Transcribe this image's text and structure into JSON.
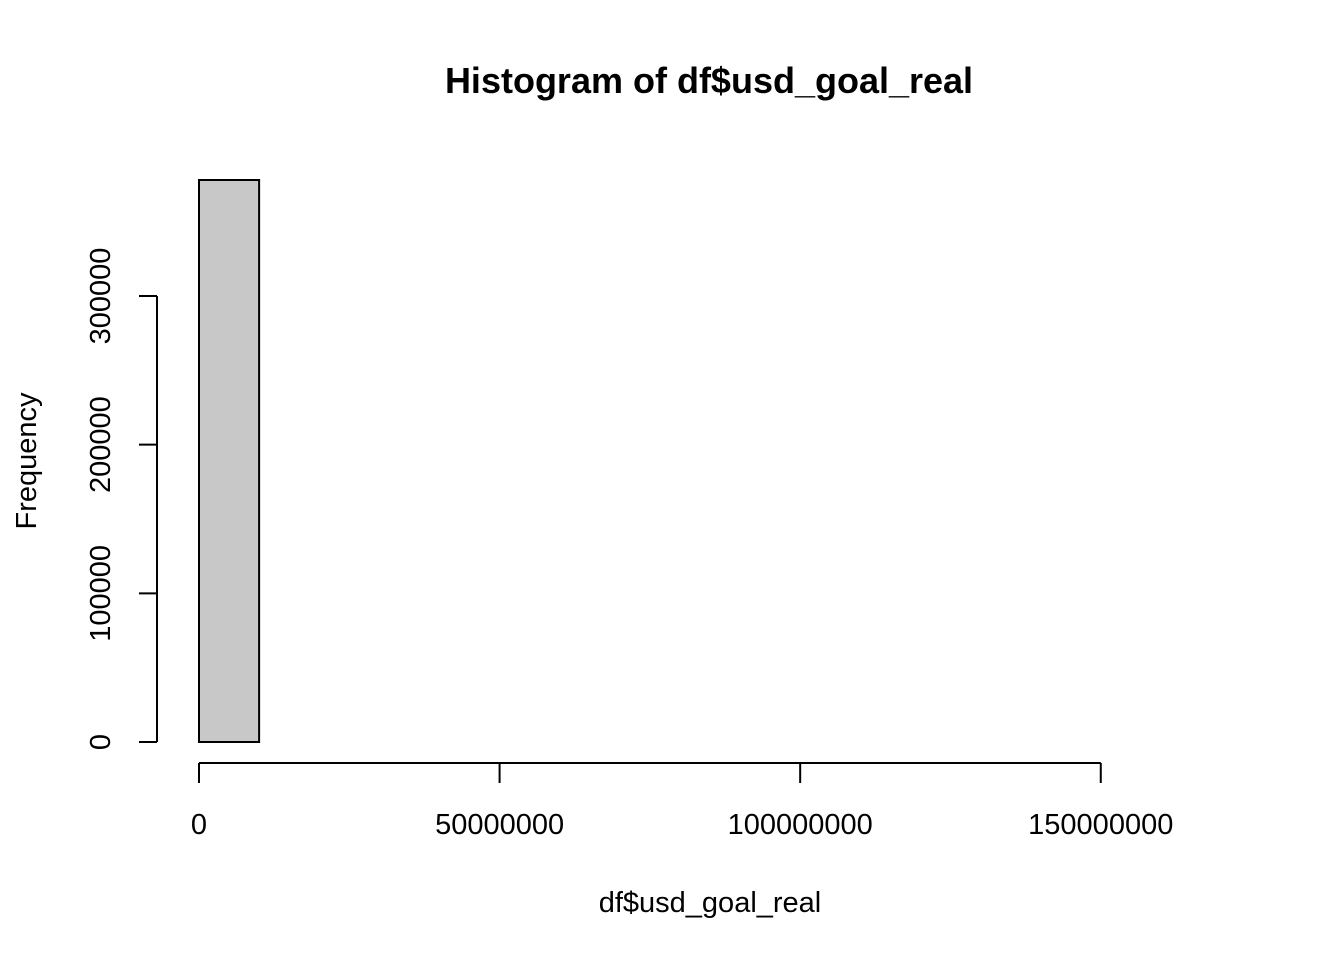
{
  "chart_data": {
    "type": "bar",
    "title": "Histogram of df$usd_goal_real",
    "xlabel": "df$usd_goal_real",
    "ylabel": "Frequency",
    "bin_width": 10000000,
    "bins": [
      {
        "start": 0,
        "end": 10000000,
        "count": 378000
      },
      {
        "start": 10000000,
        "end": 20000000,
        "count": 0
      },
      {
        "start": 20000000,
        "end": 30000000,
        "count": 0
      },
      {
        "start": 30000000,
        "end": 40000000,
        "count": 0
      },
      {
        "start": 40000000,
        "end": 50000000,
        "count": 0
      },
      {
        "start": 50000000,
        "end": 60000000,
        "count": 0
      },
      {
        "start": 60000000,
        "end": 70000000,
        "count": 0
      },
      {
        "start": 70000000,
        "end": 80000000,
        "count": 0
      },
      {
        "start": 80000000,
        "end": 90000000,
        "count": 0
      },
      {
        "start": 90000000,
        "end": 100000000,
        "count": 0
      },
      {
        "start": 100000000,
        "end": 110000000,
        "count": 0
      },
      {
        "start": 110000000,
        "end": 120000000,
        "count": 0
      },
      {
        "start": 120000000,
        "end": 130000000,
        "count": 0
      },
      {
        "start": 130000000,
        "end": 140000000,
        "count": 0
      },
      {
        "start": 140000000,
        "end": 150000000,
        "count": 0
      },
      {
        "start": 150000000,
        "end": 160000000,
        "count": 0
      },
      {
        "start": 160000000,
        "end": 170000000,
        "count": 0
      }
    ],
    "xlim": [
      0,
      170000000
    ],
    "ylim": [
      0,
      378000
    ],
    "x_ticks": [
      0,
      50000000,
      100000000,
      150000000
    ],
    "x_tick_labels": [
      "0",
      "50000000",
      "100000000",
      "150000000"
    ],
    "y_ticks": [
      0,
      100000,
      200000,
      300000
    ],
    "y_tick_labels": [
      "0",
      "100000",
      "200000",
      "300000"
    ],
    "bar_color": "#c8c8c8",
    "bar_border_color": "#000000",
    "grid": false
  }
}
